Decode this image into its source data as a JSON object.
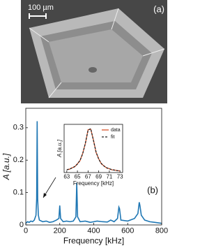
{
  "panel_a": {
    "scale_label": "100 µm",
    "label": "(a)"
  },
  "chart_data": [
    {
      "type": "line",
      "panel_label": "(b)",
      "x_label": "Frequency [kHz]",
      "y_label": "A [a.u.]",
      "xlim": [
        0,
        800
      ],
      "xticks": [
        0,
        200,
        400,
        600,
        800
      ],
      "ylim": [
        0,
        0.36
      ],
      "yticks": [
        0,
        0.1,
        0.2,
        0.3
      ],
      "x": [
        0,
        10,
        20,
        30,
        40,
        50,
        60,
        64,
        67,
        70,
        74,
        80,
        100,
        120,
        140,
        160,
        180,
        195,
        200,
        205,
        220,
        240,
        260,
        280,
        295,
        300,
        305,
        320,
        350,
        380,
        400,
        420,
        450,
        480,
        500,
        520,
        540,
        548,
        552,
        560,
        600,
        640,
        660,
        668,
        672,
        680,
        700,
        730,
        760,
        800
      ],
      "series": [
        {
          "color": "#1f77b4",
          "dash": false,
          "values": [
            0.005,
            0.01,
            0.008,
            0.012,
            0.01,
            0.015,
            0.03,
            0.08,
            0.32,
            0.08,
            0.03,
            0.015,
            0.01,
            0.012,
            0.008,
            0.01,
            0.015,
            0.02,
            0.06,
            0.02,
            0.01,
            0.012,
            0.01,
            0.012,
            0.025,
            0.13,
            0.025,
            0.01,
            0.012,
            0.008,
            0.01,
            0.012,
            0.01,
            0.009,
            0.015,
            0.01,
            0.02,
            0.055,
            0.05,
            0.015,
            0.012,
            0.02,
            0.035,
            0.07,
            0.06,
            0.03,
            0.015,
            0.01,
            0.008,
            0.005
          ]
        }
      ]
    },
    {
      "type": "line",
      "x_label": "Frequency [kHz]",
      "y_label": "A [a.u.]",
      "xlim": [
        62.5,
        73.5
      ],
      "xticks": [
        63,
        65,
        67,
        69,
        71,
        73
      ],
      "ylim": [
        0,
        0.34
      ],
      "x": [
        63,
        63.5,
        64,
        64.5,
        65,
        65.5,
        66,
        66.5,
        67,
        67.5,
        68,
        68.5,
        69,
        69.5,
        70,
        70.5,
        71,
        71.5,
        72,
        72.5,
        73
      ],
      "series": [
        {
          "name": "data",
          "color": "#d9542b",
          "dash": false,
          "values": [
            0.021,
            0.023,
            0.034,
            0.041,
            0.062,
            0.084,
            0.137,
            0.205,
            0.302,
            0.306,
            0.232,
            0.142,
            0.097,
            0.061,
            0.047,
            0.032,
            0.027,
            0.019,
            0.018,
            0.013,
            0.012
          ]
        },
        {
          "name": "fit",
          "color": "#222222",
          "dash": true,
          "values": [
            0.0196,
            0.0248,
            0.032,
            0.0428,
            0.0596,
            0.087,
            0.133,
            0.209,
            0.298,
            0.31,
            0.228,
            0.146,
            0.0944,
            0.064,
            0.0456,
            0.0338,
            0.026,
            0.0205,
            0.0166,
            0.0137,
            0.0115
          ]
        }
      ]
    }
  ]
}
